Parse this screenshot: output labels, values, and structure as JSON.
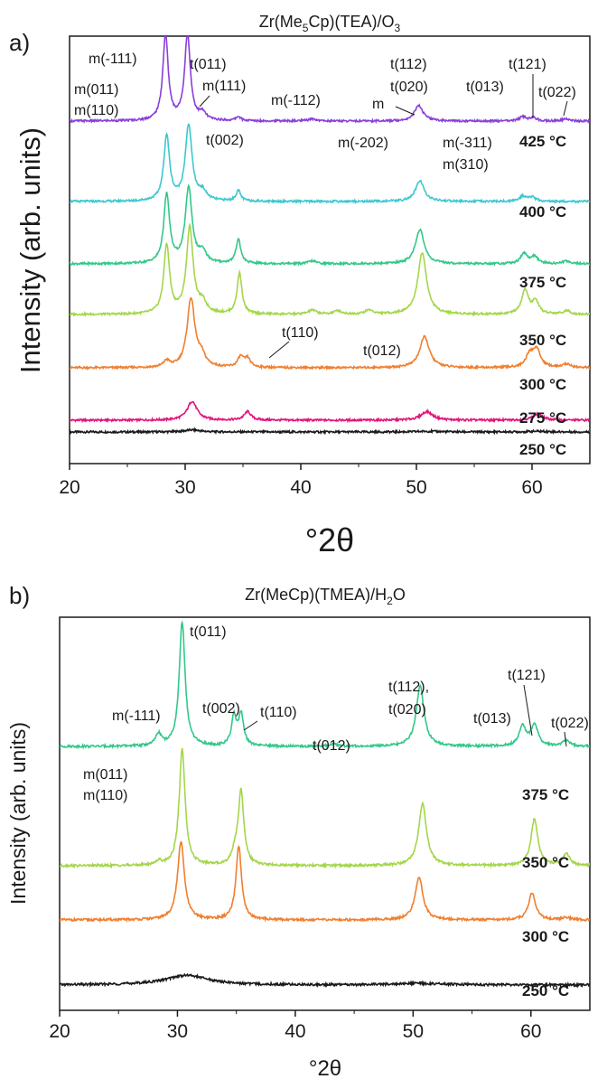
{
  "chart_data": [
    {
      "panel_label": "a)",
      "type": "line",
      "title_parts": [
        "Zr(Me",
        "5",
        "Cp)(TEA)/O",
        "3"
      ],
      "xlabel": "°2θ",
      "ylabel": "Intensity (arb. units)",
      "xlim": [
        20,
        65
      ],
      "xticks": [
        "20",
        "30",
        "40",
        "50",
        "60"
      ],
      "series": [
        {
          "label": "250 °C",
          "color": "#1a1a1a",
          "peaks": [
            [
              30.6,
              0.06,
              0.8
            ],
            [
              51.0,
              0.02,
              1.2
            ],
            [
              60.5,
              0.02,
              1.0
            ]
          ]
        },
        {
          "label": "275 °C",
          "color": "#e0157c",
          "peaks": [
            [
              30.6,
              0.55,
              0.5
            ],
            [
              35.4,
              0.25,
              0.35
            ],
            [
              50.9,
              0.25,
              0.6
            ],
            [
              60.5,
              0.18,
              0.5
            ]
          ]
        },
        {
          "label": "300 °C",
          "color": "#f07f2f",
          "peaks": [
            [
              28.4,
              0.18,
              0.3
            ],
            [
              30.5,
              2.0,
              0.4
            ],
            [
              31.4,
              0.3,
              0.4
            ],
            [
              34.8,
              0.3,
              0.3
            ],
            [
              35.4,
              0.25,
              0.3
            ],
            [
              50.7,
              0.9,
              0.5
            ],
            [
              59.8,
              0.35,
              0.4
            ],
            [
              60.4,
              0.5,
              0.4
            ],
            [
              63.0,
              0.1,
              0.4
            ]
          ]
        },
        {
          "label": "350 °C",
          "color": "#a4d64a",
          "peaks": [
            [
              28.4,
              2.0,
              0.3
            ],
            [
              30.4,
              2.5,
              0.35
            ],
            [
              31.5,
              0.3,
              0.4
            ],
            [
              34.7,
              1.2,
              0.25
            ],
            [
              41.0,
              0.12,
              0.4
            ],
            [
              43.2,
              0.1,
              0.4
            ],
            [
              45.9,
              0.12,
              0.4
            ],
            [
              50.5,
              1.8,
              0.45
            ],
            [
              59.4,
              0.7,
              0.35
            ],
            [
              60.3,
              0.35,
              0.35
            ],
            [
              63.0,
              0.1,
              0.4
            ]
          ]
        },
        {
          "label": "375 °C",
          "color": "#32c88a",
          "peaks": [
            [
              28.4,
              2.0,
              0.3
            ],
            [
              30.3,
              2.2,
              0.35
            ],
            [
              31.5,
              0.3,
              0.4
            ],
            [
              34.6,
              0.7,
              0.25
            ],
            [
              41.0,
              0.08,
              0.4
            ],
            [
              50.3,
              1.0,
              0.45
            ],
            [
              59.3,
              0.3,
              0.35
            ],
            [
              60.2,
              0.2,
              0.35
            ],
            [
              63.0,
              0.08,
              0.4
            ]
          ]
        },
        {
          "label": "400 °C",
          "color": "#3cc8cf",
          "peaks": [
            [
              28.4,
              1.9,
              0.3
            ],
            [
              30.3,
              2.2,
              0.35
            ],
            [
              31.5,
              0.25,
              0.4
            ],
            [
              34.6,
              0.3,
              0.25
            ],
            [
              50.3,
              0.6,
              0.45
            ],
            [
              59.2,
              0.15,
              0.35
            ],
            [
              60.0,
              0.12,
              0.35
            ]
          ]
        },
        {
          "label": "425 °C",
          "color": "#8a3fd9",
          "peaks": [
            [
              28.3,
              2.5,
              0.28
            ],
            [
              30.2,
              2.5,
              0.3
            ],
            [
              31.5,
              0.2,
              0.35
            ],
            [
              34.6,
              0.12,
              0.25
            ],
            [
              41.0,
              0.06,
              0.4
            ],
            [
              50.2,
              0.45,
              0.45
            ],
            [
              59.2,
              0.12,
              0.35
            ],
            [
              60.1,
              0.1,
              0.35
            ],
            [
              62.9,
              0.05,
              0.4
            ]
          ]
        }
      ],
      "annotations": [
        "m(-111)",
        "t(011)",
        "m(011)",
        "m(110)",
        "m(111)",
        "m(-112)",
        "m",
        "t(112)",
        "t(020)",
        "t(013)",
        "t(121)",
        "t(022)",
        "t(002)",
        "m(-202)",
        "m(-311)",
        "m(310)",
        "t(110)",
        "t(012)"
      ]
    },
    {
      "panel_label": "b)",
      "type": "line",
      "title_parts": [
        "Zr(MeCp)(TMEA)/H",
        "2",
        "O"
      ],
      "xlabel": "°2θ",
      "ylabel": "Intensity (arb. units)",
      "xlim": [
        20,
        65
      ],
      "xticks": [
        "20",
        "30",
        "40",
        "50",
        "60"
      ],
      "series": [
        {
          "label": "250 °C",
          "color": "#1a1a1a",
          "peaks": [
            [
              30.8,
              0.25,
              2.2
            ],
            [
              50.5,
              0.04,
              2.5
            ]
          ]
        },
        {
          "label": "300 °C",
          "color": "#f07f2f",
          "peaks": [
            [
              30.3,
              2.0,
              0.35
            ],
            [
              35.2,
              1.9,
              0.28
            ],
            [
              50.5,
              1.1,
              0.4
            ],
            [
              60.1,
              0.7,
              0.35
            ],
            [
              63.0,
              0.06,
              0.4
            ]
          ]
        },
        {
          "label": "350 °C",
          "color": "#a4d64a",
          "peaks": [
            [
              28.4,
              0.1,
              0.3
            ],
            [
              30.4,
              3.0,
              0.3
            ],
            [
              34.9,
              0.3,
              0.3
            ],
            [
              35.4,
              1.9,
              0.28
            ],
            [
              50.8,
              1.6,
              0.4
            ],
            [
              60.3,
              1.2,
              0.35
            ],
            [
              63.0,
              0.3,
              0.35
            ]
          ]
        },
        {
          "label": "375 °C",
          "color": "#32c88a",
          "peaks": [
            [
              28.4,
              0.3,
              0.3
            ],
            [
              30.4,
              3.2,
              0.3
            ],
            [
              34.8,
              0.75,
              0.25
            ],
            [
              35.4,
              0.8,
              0.25
            ],
            [
              43.2,
              0.05,
              0.4
            ],
            [
              50.6,
              1.55,
              0.4
            ],
            [
              59.3,
              0.5,
              0.35
            ],
            [
              60.3,
              0.55,
              0.35
            ],
            [
              63.0,
              0.15,
              0.35
            ]
          ]
        }
      ],
      "annotations": [
        "t(011)",
        "m(-111)",
        "t(002)",
        "t(110)",
        "t(012)",
        "t(112),",
        "t(020)",
        "t(121)",
        "t(013)",
        "t(022)",
        "m(011)",
        "m(110)"
      ]
    }
  ]
}
